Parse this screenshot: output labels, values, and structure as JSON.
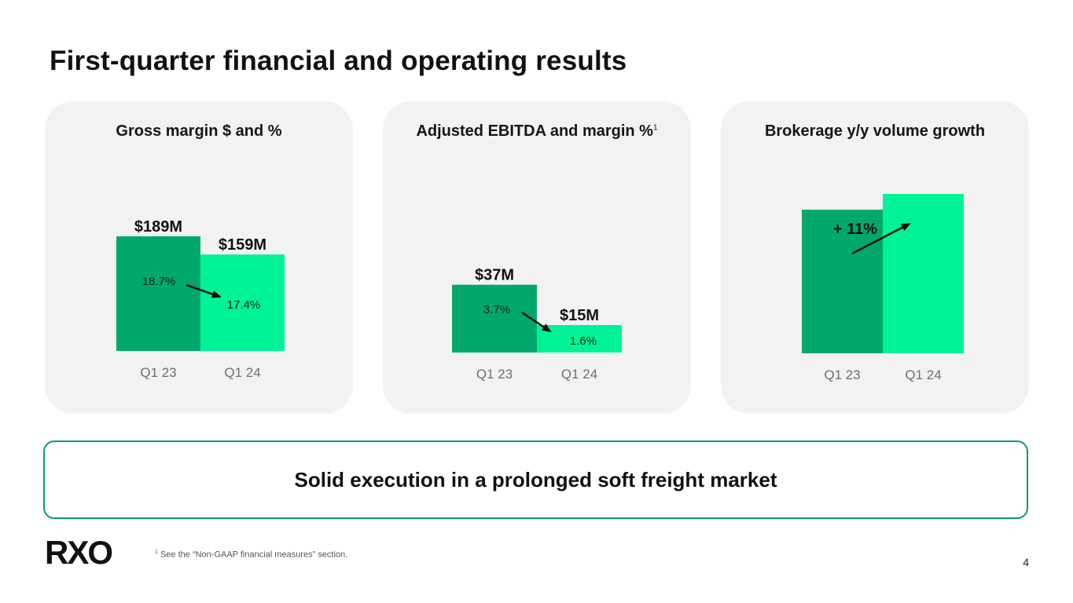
{
  "page_title": "First-quarter financial and operating results",
  "summary": "Solid execution in a prolonged soft freight market",
  "logo_text": "RXO",
  "footnote": {
    "marker": "1",
    "text": "See the “Non-GAAP financial measures” section."
  },
  "page_number": "4",
  "colors": {
    "dark_green": "#00a86b",
    "light_green": "#00f297",
    "card_bg": "#f2f2f2",
    "border_green": "#0c9d66"
  },
  "chart_data": [
    {
      "type": "bar",
      "title": "Gross margin $ and %",
      "title_sup": "",
      "categories": [
        "Q1 23",
        "Q1 24"
      ],
      "values": [
        189,
        159
      ],
      "unit": "$M",
      "value_labels": [
        "$189M",
        "$159M"
      ],
      "percent_labels": [
        "18.7%",
        "17.4%"
      ],
      "annotation": "",
      "ylim": [
        0,
        189
      ]
    },
    {
      "type": "bar",
      "title": "Adjusted EBITDA and margin %",
      "title_sup": "1",
      "categories": [
        "Q1 23",
        "Q1 24"
      ],
      "values": [
        37,
        15
      ],
      "unit": "$M",
      "value_labels": [
        "$37M",
        "$15M"
      ],
      "percent_labels": [
        "3.7%",
        "1.6%"
      ],
      "annotation": "",
      "ylim": [
        0,
        45
      ]
    },
    {
      "type": "bar",
      "title": "Brokerage y/y volume growth",
      "title_sup": "",
      "categories": [
        "Q1 23",
        "Q1 24"
      ],
      "values": [
        100,
        111
      ],
      "unit": "",
      "value_labels": [
        "",
        ""
      ],
      "percent_labels": [
        "",
        ""
      ],
      "annotation": "+ 11%",
      "ylim": [
        0,
        111
      ]
    }
  ]
}
